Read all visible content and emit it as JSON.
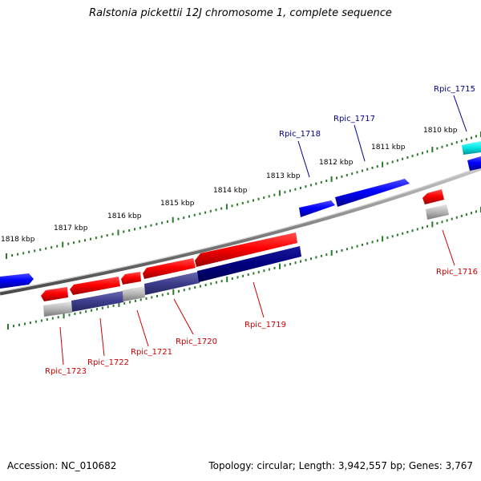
{
  "title": "Ralstonia pickettii 12J chromosome 1, complete sequence",
  "accession": "Accession: NC_010682",
  "topology": "Topology: circular; Length: 3,942,557 bp; Genes: 3,767",
  "kbp_labels": [
    "1818 kbp",
    "1817 kbp",
    "1816 kbp",
    "1815 kbp",
    "1814 kbp",
    "1813 kbp",
    "1812 kbp",
    "1811 kbp",
    "1810 kbp"
  ],
  "gene_labels": {
    "top": [
      "Rpic_1718",
      "Rpic_1717",
      "Rpic_1715"
    ],
    "bottom": [
      "Rpic_1716",
      "Rpic_1719",
      "Rpic_1720",
      "Rpic_1721",
      "Rpic_1722",
      "Rpic_1723"
    ]
  },
  "colors": {
    "forward_gene": "#0000ff",
    "reverse_gene": "#ff0000",
    "cds_dark": "#00007f",
    "cds_light": "#3c3c8c",
    "rna": "#00e5e5",
    "backbone": "#808080",
    "tick": "#2a7a2a",
    "top_label": "#00008b",
    "bottom_label": "#cc0000"
  }
}
